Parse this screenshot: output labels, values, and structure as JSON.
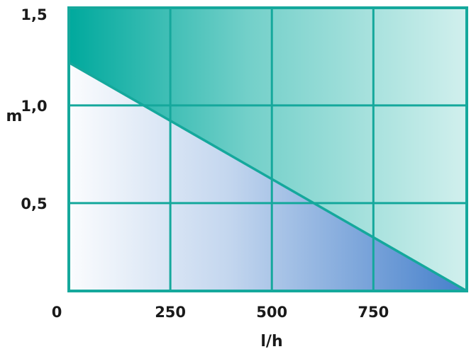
{
  "chart_data": {
    "type": "area",
    "xlabel": "l/h",
    "ylabel": "m",
    "xlim": [
      0,
      980
    ],
    "ylim": [
      0.05,
      1.5
    ],
    "x_ticks": [
      {
        "value": 0,
        "label": "0"
      },
      {
        "value": 250,
        "label": "250"
      },
      {
        "value": 500,
        "label": "500"
      },
      {
        "value": 750,
        "label": "750"
      }
    ],
    "y_ticks": [
      {
        "value": 0.5,
        "label": "0,5"
      },
      {
        "value": 1.0,
        "label": "1,0"
      },
      {
        "value": 1.5,
        "label": "1,5"
      }
    ],
    "grid": true,
    "series": [
      {
        "x": [
          0,
          980
        ],
        "y": [
          1.22,
          0.05
        ]
      }
    ],
    "colors": {
      "frame": "#15a89c",
      "upper_fill": "#00a99d",
      "lower_fill": "#3a78c8",
      "curve": "#15a89c"
    }
  }
}
